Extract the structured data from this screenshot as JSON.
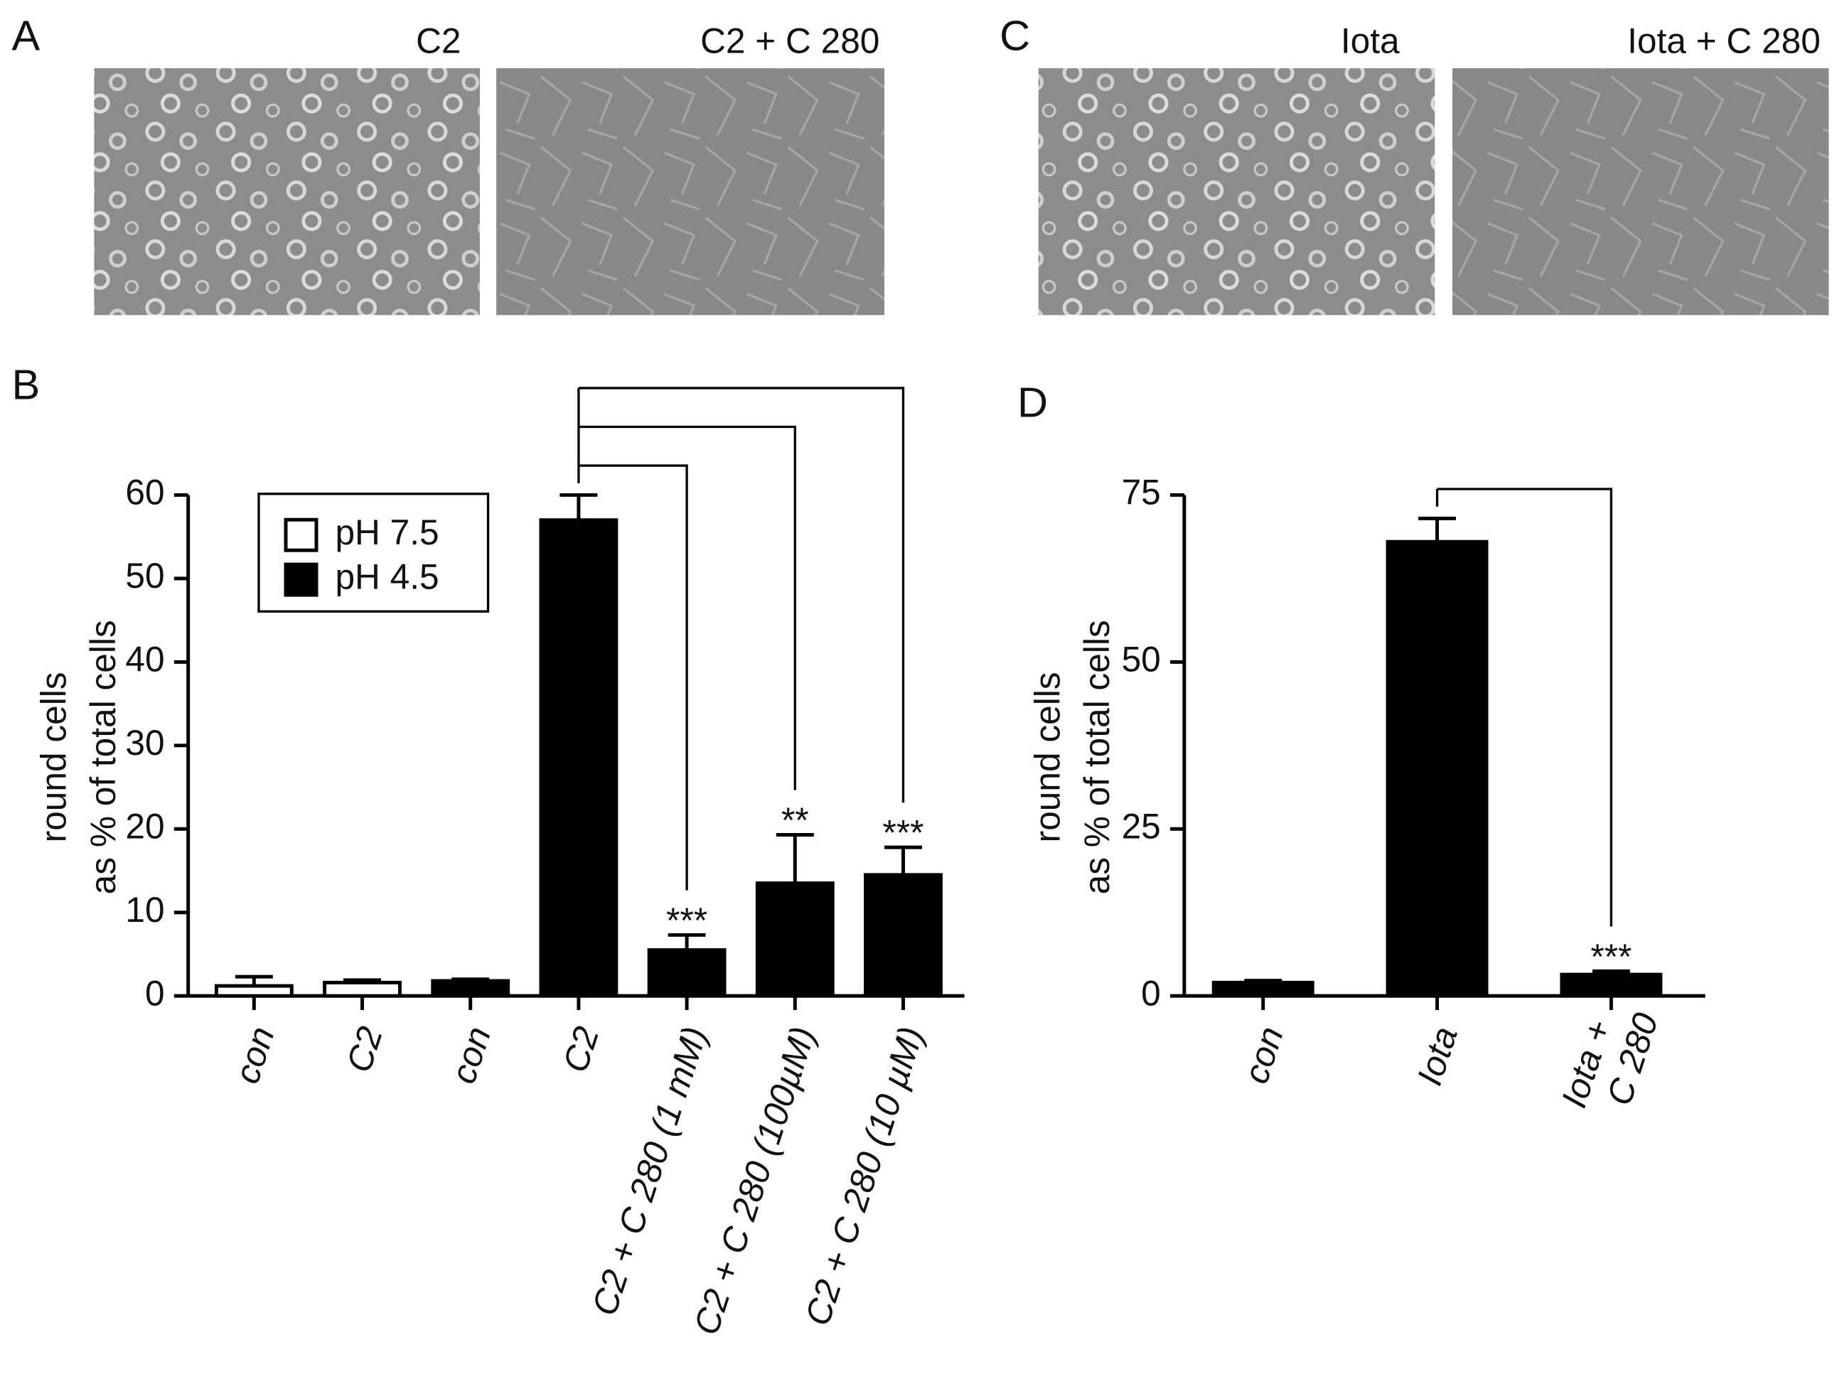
{
  "figure": {
    "panels": [
      {
        "label": "A",
        "images": [
          "C2",
          "C2 + C 280"
        ]
      },
      {
        "label": "C",
        "images": [
          "Iota",
          "Iota + C 280"
        ]
      }
    ]
  },
  "chart_data": [
    {
      "type": "bar",
      "panel_label": "B",
      "ylabel": [
        "round cells",
        "as % of total cells"
      ],
      "categories": [
        "con",
        "C2",
        "con",
        "C2",
        "C2 + C 280 (1 mM)",
        "C2 + C 280 (100µM)",
        "C2 + C 280 (10 µM)"
      ],
      "series": [
        {
          "name": "pH 7.5",
          "color": "#ffffff",
          "values": [
            1.2,
            1.6,
            null,
            null,
            null,
            null,
            null
          ],
          "errors": [
            1.1,
            0.3,
            null,
            null,
            null,
            null,
            null
          ]
        },
        {
          "name": "pH 4.5",
          "color": "#000000",
          "values": [
            null,
            null,
            1.8,
            57,
            5.5,
            13.5,
            14.5
          ],
          "errors": [
            null,
            null,
            0.2,
            3,
            1.8,
            5.8,
            3.3
          ]
        }
      ],
      "significance": [
        null,
        null,
        null,
        null,
        "***",
        "**",
        "***"
      ],
      "ylim": [
        0,
        60
      ],
      "yticks": [
        0,
        10,
        20,
        30,
        40,
        50,
        60
      ],
      "legend": "upper left"
    },
    {
      "type": "bar",
      "panel_label": "D",
      "ylabel": [
        "round cells",
        "as % of total cells"
      ],
      "categories": [
        "con",
        "Iota",
        [
          "Iota +",
          "C 280"
        ]
      ],
      "series": [
        {
          "color": "#000000",
          "values": [
            2,
            68,
            3.2
          ],
          "errors": [
            0.3,
            3.5,
            0.5
          ]
        }
      ],
      "significance": [
        null,
        null,
        "***"
      ],
      "ylim": [
        0,
        75
      ],
      "yticks": [
        0,
        25,
        50,
        75
      ]
    }
  ]
}
